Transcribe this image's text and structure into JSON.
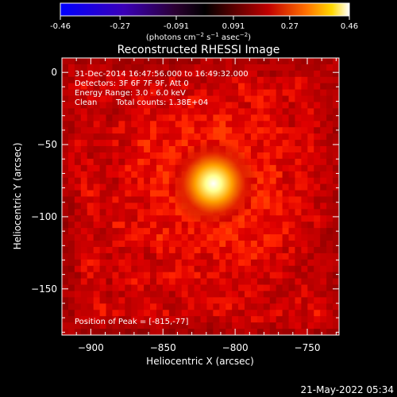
{
  "colorbar": {
    "ticks": [
      "-0.46",
      "-0.27",
      "-0.091",
      "0.091",
      "0.27",
      "0.46"
    ],
    "tick_values": [
      -0.46,
      -0.27,
      -0.091,
      0.091,
      0.27,
      0.46
    ],
    "range": [
      -0.46,
      0.46
    ],
    "units_text": "(photons cm",
    "units_exp1": "−2",
    "units_mid": " s",
    "units_exp2": "−1",
    "units_mid2": " asec",
    "units_exp3": "−2",
    "units_end": ")"
  },
  "title": "Reconstructed RHESSI Image",
  "info": {
    "time_range": "31-Dec-2014 16:47:56.000 to 16:49:32.000",
    "detectors": "Detectors: 3F 6F 7F 9F, Att 0",
    "energy": "Energy Range: 3.0 - 6.0 keV",
    "method": "Clean",
    "counts": "Total counts: 1.38E+04"
  },
  "peak_label": "Position of Peak = [-815,-77]",
  "peak": {
    "x": -815,
    "y": -77
  },
  "axes": {
    "xlabel": "Heliocentric X (arcsec)",
    "ylabel": "Heliocentric Y (arcsec)",
    "xlim": [
      -920,
      -728
    ],
    "ylim": [
      -182,
      10
    ],
    "xticks": [
      -900,
      -850,
      -800,
      -750
    ],
    "yticks": [
      0,
      -50,
      -100,
      -150
    ],
    "xtick_labels": [
      "−900",
      "−850",
      "−800",
      "−750"
    ],
    "ytick_labels": [
      "0",
      "−50",
      "−100",
      "−150"
    ]
  },
  "timestamp": "21-May-2022 05:34",
  "colormap": "red-temperature"
}
